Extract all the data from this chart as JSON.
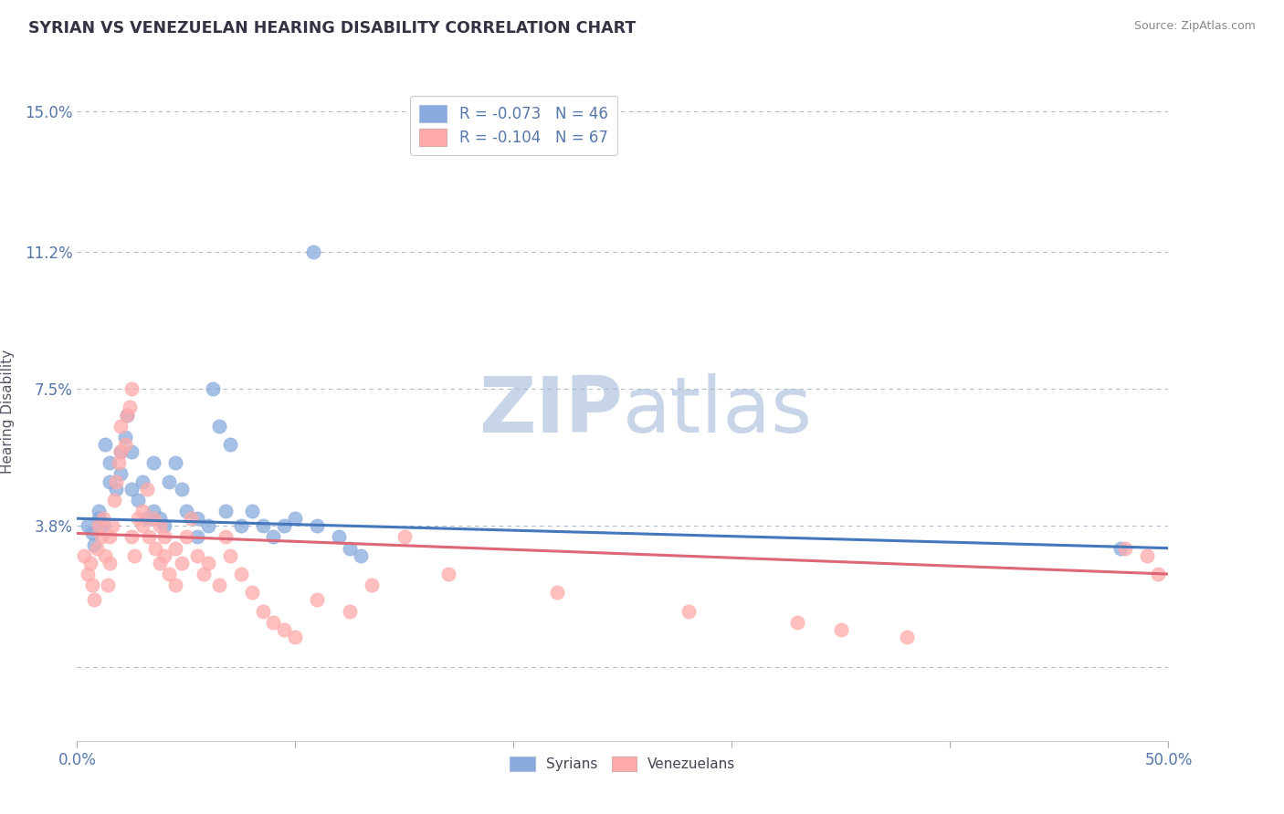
{
  "title": "SYRIAN VS VENEZUELAN HEARING DISABILITY CORRELATION CHART",
  "source": "Source: ZipAtlas.com",
  "ylabel": "Hearing Disability",
  "xlim": [
    0.0,
    0.5
  ],
  "ylim": [
    -0.02,
    0.158
  ],
  "yticks": [
    0.0,
    0.038,
    0.075,
    0.112,
    0.15
  ],
  "ytick_labels": [
    "",
    "3.8%",
    "7.5%",
    "11.2%",
    "15.0%"
  ],
  "xticks": [
    0.0,
    0.1,
    0.2,
    0.3,
    0.4,
    0.5
  ],
  "xtick_labels": [
    "0.0%",
    "",
    "",
    "",
    "",
    "50.0%"
  ],
  "legend_r1": "R = -0.073   N = 46",
  "legend_r2": "R = -0.104   N = 67",
  "legend_label1": "Syrians",
  "legend_label2": "Venezuelans",
  "blue_color": "#88AADD",
  "pink_color": "#FFAAAA",
  "blue_line_color": "#4477BB",
  "pink_line_color": "#DD6677",
  "title_color": "#333344",
  "axis_label_color": "#5577AA",
  "watermark_color": "#C8D4E8",
  "background_color": "#FFFFFF",
  "grid_color": "#AABBCC",
  "syrian_x": [
    0.005,
    0.007,
    0.008,
    0.01,
    0.01,
    0.012,
    0.013,
    0.015,
    0.015,
    0.018,
    0.02,
    0.02,
    0.022,
    0.023,
    0.025,
    0.025,
    0.028,
    0.03,
    0.032,
    0.035,
    0.035,
    0.038,
    0.04,
    0.042,
    0.045,
    0.048,
    0.05,
    0.055,
    0.06,
    0.062,
    0.065,
    0.068,
    0.07,
    0.075,
    0.08,
    0.085,
    0.09,
    0.095,
    0.1,
    0.11,
    0.12,
    0.125,
    0.13,
    0.108,
    0.055,
    0.478
  ],
  "syrian_y": [
    0.038,
    0.036,
    0.033,
    0.042,
    0.04,
    0.038,
    0.06,
    0.055,
    0.05,
    0.048,
    0.058,
    0.052,
    0.062,
    0.068,
    0.058,
    0.048,
    0.045,
    0.05,
    0.04,
    0.055,
    0.042,
    0.04,
    0.038,
    0.05,
    0.055,
    0.048,
    0.042,
    0.04,
    0.038,
    0.075,
    0.065,
    0.042,
    0.06,
    0.038,
    0.042,
    0.038,
    0.035,
    0.038,
    0.04,
    0.038,
    0.035,
    0.032,
    0.03,
    0.112,
    0.035,
    0.032
  ],
  "venezuelan_x": [
    0.003,
    0.005,
    0.006,
    0.007,
    0.008,
    0.009,
    0.01,
    0.011,
    0.012,
    0.013,
    0.014,
    0.015,
    0.015,
    0.016,
    0.017,
    0.018,
    0.019,
    0.02,
    0.02,
    0.022,
    0.023,
    0.024,
    0.025,
    0.025,
    0.026,
    0.028,
    0.03,
    0.03,
    0.032,
    0.033,
    0.035,
    0.036,
    0.038,
    0.038,
    0.04,
    0.04,
    0.042,
    0.045,
    0.045,
    0.048,
    0.05,
    0.052,
    0.055,
    0.058,
    0.06,
    0.065,
    0.068,
    0.07,
    0.075,
    0.08,
    0.085,
    0.09,
    0.095,
    0.1,
    0.11,
    0.125,
    0.135,
    0.15,
    0.17,
    0.22,
    0.28,
    0.33,
    0.35,
    0.38,
    0.48,
    0.49,
    0.495
  ],
  "venezuelan_y": [
    0.03,
    0.025,
    0.028,
    0.022,
    0.018,
    0.032,
    0.038,
    0.035,
    0.04,
    0.03,
    0.022,
    0.028,
    0.035,
    0.038,
    0.045,
    0.05,
    0.055,
    0.058,
    0.065,
    0.06,
    0.068,
    0.07,
    0.075,
    0.035,
    0.03,
    0.04,
    0.038,
    0.042,
    0.048,
    0.035,
    0.04,
    0.032,
    0.038,
    0.028,
    0.035,
    0.03,
    0.025,
    0.032,
    0.022,
    0.028,
    0.035,
    0.04,
    0.03,
    0.025,
    0.028,
    0.022,
    0.035,
    0.03,
    0.025,
    0.02,
    0.015,
    0.012,
    0.01,
    0.008,
    0.018,
    0.015,
    0.022,
    0.035,
    0.025,
    0.02,
    0.015,
    0.012,
    0.01,
    0.008,
    0.032,
    0.03,
    0.025
  ]
}
